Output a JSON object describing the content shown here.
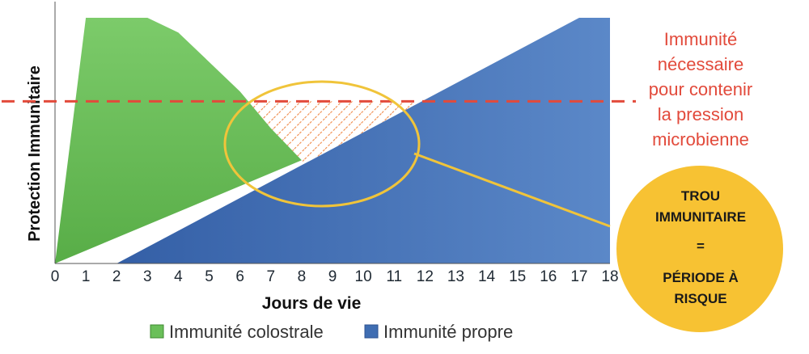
{
  "chart_data": {
    "type": "area",
    "xlabel": "Jours de vie",
    "ylabel": "Protection Immunitaire",
    "xlim": [
      0,
      18
    ],
    "ylim": [
      0,
      100
    ],
    "x_ticks": [
      "0",
      "1",
      "2",
      "3",
      "4",
      "5",
      "6",
      "7",
      "8",
      "9",
      "10",
      "11",
      "12",
      "13",
      "14",
      "15",
      "16",
      "17",
      "18"
    ],
    "y_ticks_shown": false,
    "grid": false,
    "legend_position": "bottom",
    "series": [
      {
        "name": "Immunité colostrale",
        "color": "#6abf59",
        "points": [
          [
            0,
            0
          ],
          [
            1,
            100
          ],
          [
            3,
            100
          ],
          [
            4,
            94
          ],
          [
            6,
            70
          ],
          [
            7,
            55
          ],
          [
            8,
            42
          ]
        ]
      },
      {
        "name": "Immunité propre",
        "color": "#3f6db2",
        "points": [
          [
            2,
            0
          ],
          [
            17,
            100
          ],
          [
            18,
            100
          ]
        ]
      }
    ],
    "threshold": {
      "y": 66,
      "color": "#e24a3b",
      "label": [
        "Immunité",
        "nécessaire",
        "pour contenir",
        "la pression",
        "microbienne"
      ]
    },
    "hatched_gap": {
      "color": "#ef8a4a",
      "x_range": [
        6,
        11.6
      ]
    },
    "badge": {
      "color": "#f7c233",
      "lines": [
        "TROU",
        "IMMUNITAIRE",
        "=",
        "PÉRIODE À",
        "RISQUE"
      ]
    }
  }
}
